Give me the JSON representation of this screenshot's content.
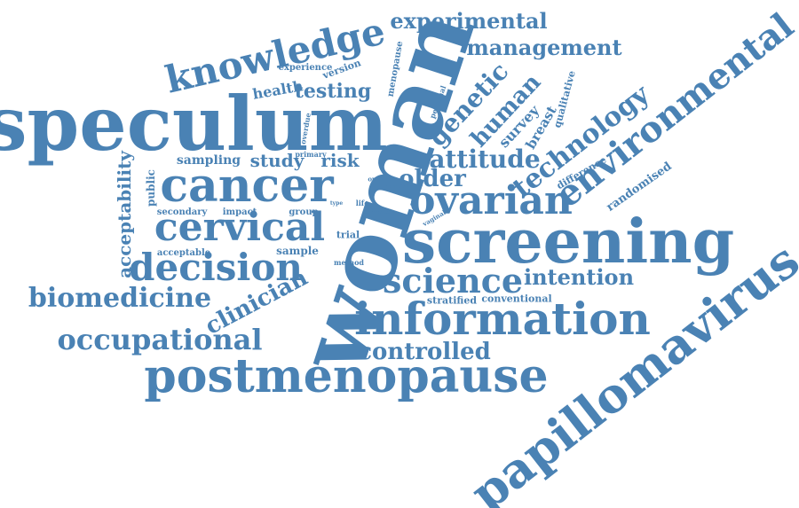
{
  "cloud": {
    "color": "#4a82b4",
    "words": [
      "speculum",
      "woman",
      "screening",
      "papillomavirus",
      "postmenopause",
      "cancer",
      "information",
      "environmental",
      "knowledge",
      "cervical",
      "decision",
      "ovarian",
      "science",
      "biomedicine",
      "occupational",
      "experimental",
      "management",
      "technology",
      "attitude",
      "genetic",
      "human",
      "older",
      "controlled",
      "clinician",
      "acceptability",
      "intention",
      "testing",
      "study",
      "risk",
      "sampling",
      "health",
      "public",
      "survey",
      "breast",
      "difference",
      "randomised",
      "qualitative",
      "stratified",
      "conventional",
      "version",
      "experience",
      "menopause",
      "personal",
      "overdue",
      "primary",
      "secondary",
      "impact",
      "group",
      "sample",
      "acceptable",
      "trial",
      "method",
      "life",
      "gist",
      "related",
      "option",
      "vaginal",
      "type",
      "date"
    ]
  }
}
